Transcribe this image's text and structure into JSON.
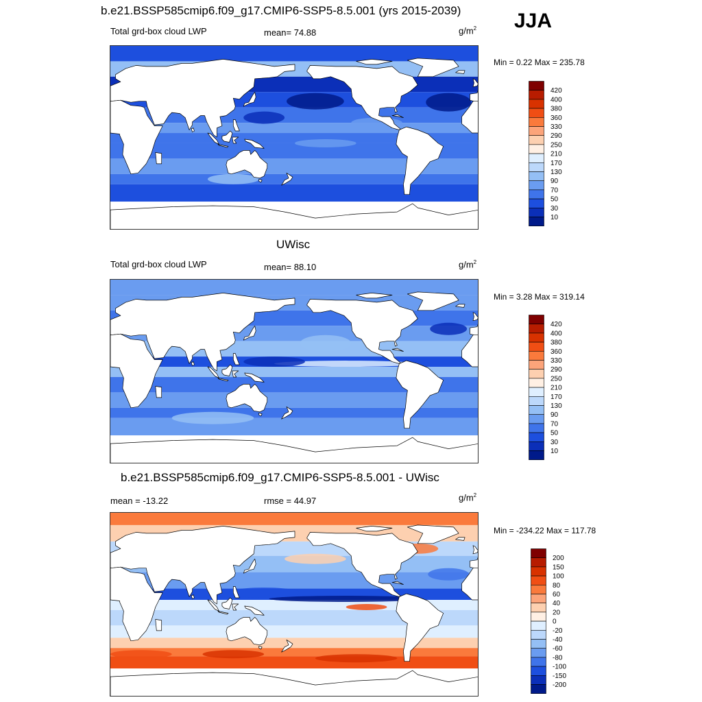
{
  "season": "JJA",
  "panels": [
    {
      "title": "b.e21.BSSP585cmip6.f09_g17.CMIP6-SSP5-8.5.001 (yrs 2015-2039)",
      "left": "Total grd-box cloud LWP",
      "stat": "mean=  74.88",
      "units": "g/m",
      "units_sup": "2",
      "minmax": "Min =    0.22 Max = 235.78",
      "colormap": "positive"
    },
    {
      "title": "UWisc",
      "left": "Total grd-box cloud LWP",
      "stat": "mean=  88.10",
      "units": "g/m",
      "units_sup": "2",
      "minmax": "Min =    3.28 Max = 319.14",
      "colormap": "positive"
    },
    {
      "title": "b.e21.BSSP585cmip6.f09_g17.CMIP6-SSP5-8.5.001 - UWisc",
      "left": "mean = -13.22",
      "stat": "rmse =  44.97",
      "units": "g/m",
      "units_sup": "2",
      "minmax": "Min = -234.22 Max = 117.78",
      "colormap": "difference"
    }
  ],
  "colorbars": {
    "positive": {
      "labels": [
        "420",
        "400",
        "380",
        "360",
        "330",
        "290",
        "250",
        "210",
        "170",
        "130",
        "90",
        "70",
        "50",
        "30",
        "10"
      ],
      "colors": [
        "#7f0000",
        "#b71c00",
        "#d83200",
        "#f04e14",
        "#fa7a3c",
        "#fca47a",
        "#fdd0b0",
        "#fff0e4",
        "#dfefff",
        "#bcd8fb",
        "#94bff5",
        "#6a9cf0",
        "#3f74ea",
        "#1d4fde",
        "#0b2fb8",
        "#001a8a"
      ]
    },
    "difference": {
      "labels": [
        "200",
        "150",
        "100",
        "80",
        "60",
        "40",
        "20",
        "0",
        "-20",
        "-40",
        "-60",
        "-80",
        "-100",
        "-150",
        "-200"
      ],
      "colors": [
        "#7f0000",
        "#b71c00",
        "#d83200",
        "#f04e14",
        "#fa7a3c",
        "#fca47a",
        "#fdd0b0",
        "#fff0e4",
        "#dfefff",
        "#bcd8fb",
        "#94bff5",
        "#6a9cf0",
        "#3f74ea",
        "#1d4fde",
        "#0b2fb8",
        "#001a8a"
      ]
    }
  }
}
